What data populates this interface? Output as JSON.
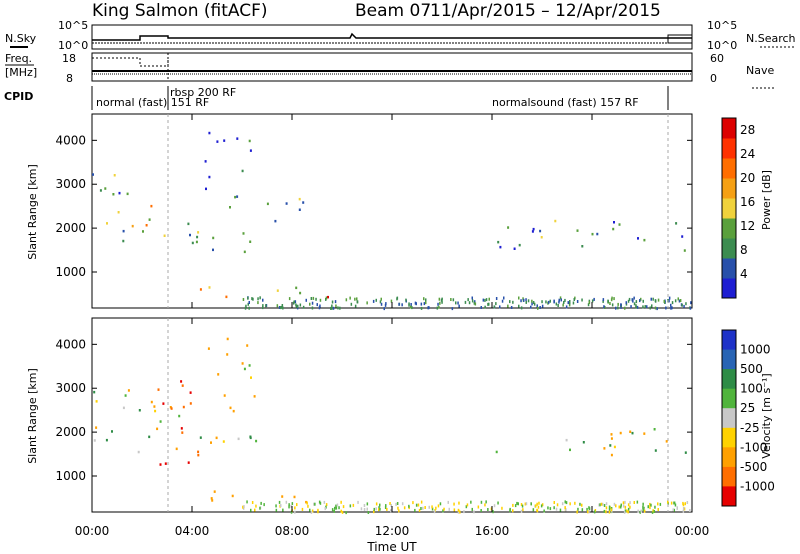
{
  "header": {
    "station": "King Salmon (fitACF)",
    "beam": "Beam 07",
    "date_range": "11/Apr/2015 – 12/Apr/2015"
  },
  "noise_panel": {
    "left_label": "N.Sky",
    "left_ticks": [
      "10^5",
      "10^0"
    ],
    "right_label": "N.Search",
    "right_ticks": [
      "10^5",
      "10^0"
    ]
  },
  "freq_panel": {
    "left_label_line1": "Freq.",
    "left_label_line2": "[MHz]",
    "left_ticks": [
      "18",
      "8"
    ],
    "right_label": "Nave",
    "right_ticks": [
      "60",
      "0"
    ]
  },
  "cpid": {
    "label": "CPID",
    "segments": [
      "normal (fast) 151 RF",
      "rbsp 200 RF",
      "normalsound (fast) 157 RF"
    ]
  },
  "colors": {
    "power_scale": [
      "#1e1ed2",
      "#2850aa",
      "#3c8c50",
      "#5aa03c",
      "#f0d23c",
      "#f5a014",
      "#ff6e00",
      "#ff3200",
      "#dc0000"
    ],
    "velocity_scale": [
      "#1e32c8",
      "#2864b4",
      "#2e8c46",
      "#50b43c",
      "#c8c8c8",
      "#ffd200",
      "#ffa000",
      "#ff6e00",
      "#e60000"
    ],
    "ground_scatter": "#b4b4b4"
  },
  "chart_data": [
    {
      "type": "heatmap",
      "title": "Power",
      "ylabel": "Slant Range [km]",
      "xlabel": "Time UT",
      "x_ticks": [
        "00:00",
        "04:00",
        "08:00",
        "12:00",
        "16:00",
        "20:00",
        "00:00"
      ],
      "x_range_hours": [
        0,
        24
      ],
      "y_ticks": [
        1000,
        2000,
        3000,
        4000
      ],
      "ylim_km": [
        180,
        4600
      ],
      "colorbar_label": "Power [dB]",
      "colorbar_ticks": [
        4,
        8,
        12,
        16,
        20,
        24,
        28
      ],
      "colorbar_range": [
        0,
        30
      ],
      "scatter_regions": [
        {
          "t0": 0.0,
          "t1": 1.5,
          "r0": 1500,
          "r1": 3400,
          "value": 8
        },
        {
          "t0": 1.5,
          "t1": 3.0,
          "r0": 1800,
          "r1": 2800,
          "value": 16
        },
        {
          "t0": 3.0,
          "t1": 6.5,
          "r0": 1400,
          "r1": 2200,
          "value": 8
        },
        {
          "t0": 4.5,
          "t1": 6.5,
          "r0": 2500,
          "r1": 4200,
          "value": 6
        },
        {
          "t0": 4.0,
          "t1": 10.0,
          "r0": 400,
          "r1": 700,
          "value": 20
        },
        {
          "t0": 6.5,
          "t1": 8.5,
          "r0": 2000,
          "r1": 2800,
          "value": 6
        },
        {
          "t0": 16.0,
          "t1": 24.0,
          "r0": 1500,
          "r1": 2200,
          "value": 6
        }
      ]
    },
    {
      "type": "heatmap",
      "title": "Velocity",
      "ylabel": "Slant Range [km]",
      "xlabel": "Time UT",
      "x_ticks": [
        "00:00",
        "04:00",
        "08:00",
        "12:00",
        "16:00",
        "20:00",
        "00:00"
      ],
      "x_range_hours": [
        0,
        24
      ],
      "y_ticks": [
        1000,
        2000,
        3000,
        4000
      ],
      "ylim_km": [
        180,
        4600
      ],
      "colorbar_label": "Velocity [m s⁻¹]",
      "colorbar_ticks": [
        1000,
        500,
        100,
        25,
        -25,
        -100,
        -500,
        -1000
      ],
      "scatter_regions": [
        {
          "t0": 0.0,
          "t1": 3.5,
          "r0": 1500,
          "r1": 3000,
          "value": 0
        },
        {
          "t0": 2.5,
          "t1": 4.5,
          "r0": 1200,
          "r1": 3200,
          "value": -1000
        },
        {
          "t0": 3.5,
          "t1": 7.0,
          "r0": 1600,
          "r1": 2200,
          "value": 0
        },
        {
          "t0": 4.0,
          "t1": 10.0,
          "r0": 400,
          "r1": 700,
          "value": -300
        },
        {
          "t0": 4.5,
          "t1": 6.5,
          "r0": 2500,
          "r1": 4200,
          "value": -200
        },
        {
          "t0": 16.0,
          "t1": 24.0,
          "r0": 1500,
          "r1": 2100,
          "value": 0
        }
      ]
    }
  ],
  "footer": {
    "time_label": "Time UT"
  }
}
